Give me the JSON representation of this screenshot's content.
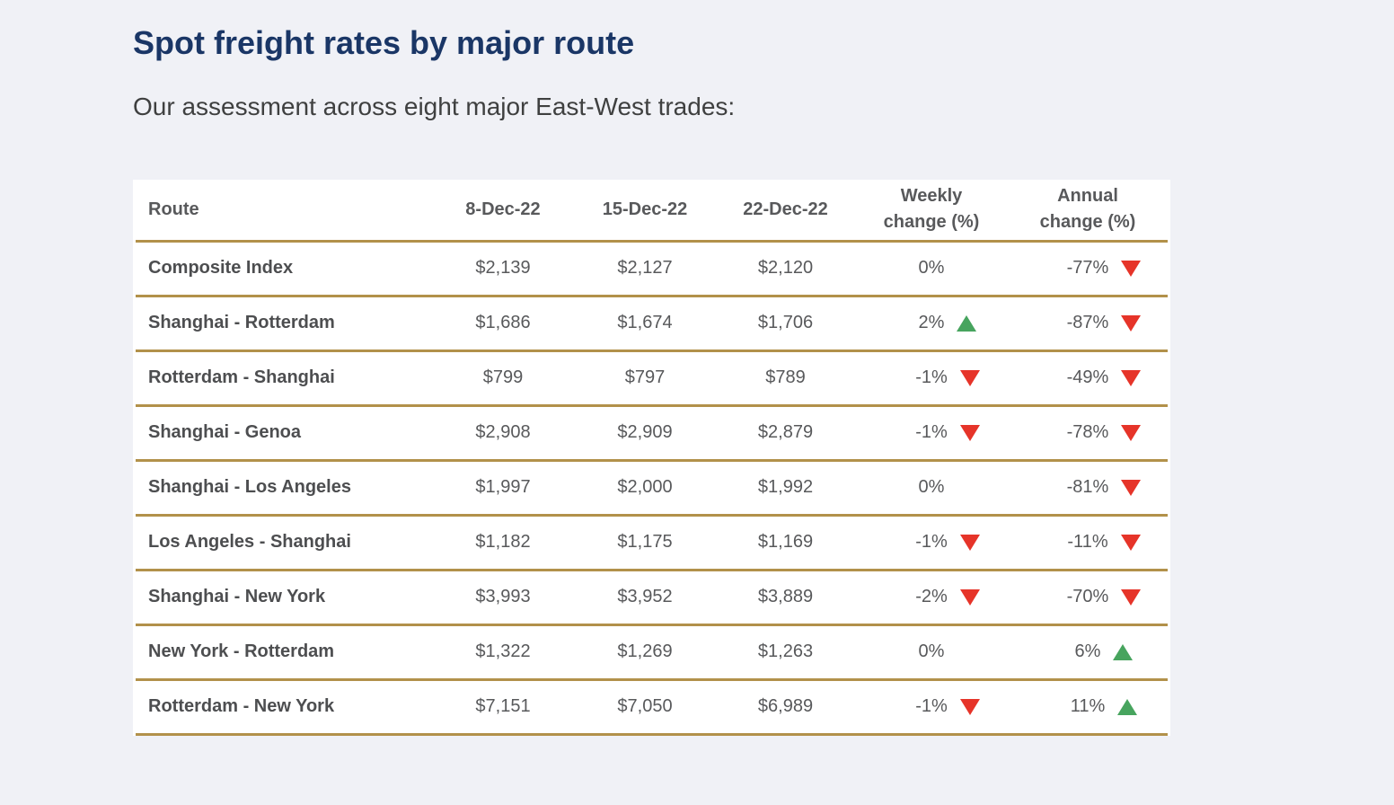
{
  "page": {
    "title": "Spot freight rates by major route",
    "subtitle": "Our assessment across eight major East-West trades:"
  },
  "icons": {
    "up_arrow": "▲",
    "down_arrow": "▼"
  },
  "colors": {
    "bg": "#f0f1f6",
    "navy": "#1a3666",
    "gold": "#b2914a",
    "red": "#e63429",
    "green": "#47a45e",
    "gray": "#58595b",
    "darkgray": "#4d4e50"
  },
  "table": {
    "columns": [
      "Route",
      "8-Dec-22",
      "15-Dec-22",
      "22-Dec-22",
      "Weekly change (%)",
      "Annual change (%)"
    ],
    "rows": [
      {
        "route": "Composite Index",
        "d1": "$2,139",
        "d2": "$2,127",
        "d3": "$2,120",
        "weekly": "0%",
        "weekly_dir": "none",
        "annual": "-77%",
        "annual_dir": "down"
      },
      {
        "route": "Shanghai - Rotterdam",
        "d1": "$1,686",
        "d2": "$1,674",
        "d3": "$1,706",
        "weekly": "2%",
        "weekly_dir": "up",
        "annual": "-87%",
        "annual_dir": "down"
      },
      {
        "route": "Rotterdam - Shanghai",
        "d1": "$799",
        "d2": "$797",
        "d3": "$789",
        "weekly": "-1%",
        "weekly_dir": "down",
        "annual": "-49%",
        "annual_dir": "down"
      },
      {
        "route": "Shanghai - Genoa",
        "d1": "$2,908",
        "d2": "$2,909",
        "d3": "$2,879",
        "weekly": "-1%",
        "weekly_dir": "down",
        "annual": "-78%",
        "annual_dir": "down"
      },
      {
        "route": "Shanghai - Los Angeles",
        "d1": "$1,997",
        "d2": "$2,000",
        "d3": "$1,992",
        "weekly": "0%",
        "weekly_dir": "none",
        "annual": "-81%",
        "annual_dir": "down"
      },
      {
        "route": "Los Angeles - Shanghai",
        "d1": "$1,182",
        "d2": "$1,175",
        "d3": "$1,169",
        "weekly": "-1%",
        "weekly_dir": "down",
        "annual": "-11%",
        "annual_dir": "down"
      },
      {
        "route": "Shanghai - New York",
        "d1": "$3,993",
        "d2": "$3,952",
        "d3": "$3,889",
        "weekly": "-2%",
        "weekly_dir": "down",
        "annual": "-70%",
        "annual_dir": "down"
      },
      {
        "route": "New York - Rotterdam",
        "d1": "$1,322",
        "d2": "$1,269",
        "d3": "$1,263",
        "weekly": "0%",
        "weekly_dir": "none",
        "annual": "6%",
        "annual_dir": "up"
      },
      {
        "route": "Rotterdam - New York",
        "d1": "$7,151",
        "d2": "$7,050",
        "d3": "$6,989",
        "weekly": "-1%",
        "weekly_dir": "down",
        "annual": "11%",
        "annual_dir": "up"
      }
    ]
  }
}
